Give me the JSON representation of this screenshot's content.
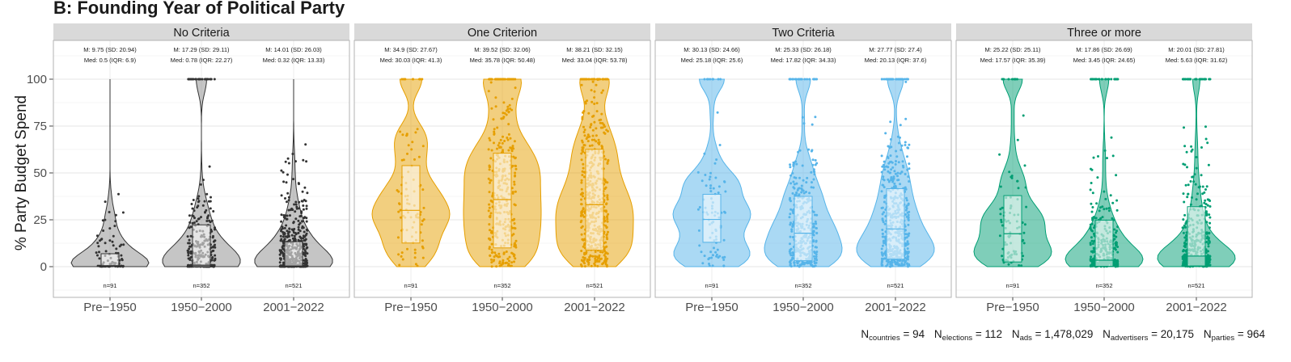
{
  "chart_data": {
    "type": "violin",
    "title": "B: Founding Year of Political Party",
    "ylabel": "% Party Budget Spend",
    "ylim": [
      -15,
      115
    ],
    "yticks": [
      0,
      25,
      50,
      75,
      100
    ],
    "grid": true,
    "legend": "none",
    "categories": [
      "Pre−1950",
      "1950−2000",
      "2001−2022"
    ],
    "panels": [
      {
        "name": "No Criteria",
        "color": "#333333",
        "fill": "#8c8c8c",
        "groups": [
          {
            "stats_line1": "M: 9.75 (SD: 20.94)",
            "stats_line2": "Med: 0.5 (IQR: 6.9)",
            "n_label": "n=91",
            "n": 91,
            "mean": 9.75,
            "sd": 20.94,
            "median": 0.5,
            "q1": 0,
            "q3": 6.9
          },
          {
            "stats_line1": "M: 17.29 (SD: 29.11)",
            "stats_line2": "Med: 0.78 (IQR: 22.27)",
            "n_label": "n=352",
            "n": 352,
            "mean": 17.29,
            "sd": 29.11,
            "median": 0.78,
            "q1": 0,
            "q3": 22.3
          },
          {
            "stats_line1": "M: 14.01 (SD: 26.03)",
            "stats_line2": "Med: 0.32 (IQR: 13.33)",
            "n_label": "n=521",
            "n": 521,
            "mean": 14.01,
            "sd": 26.03,
            "median": 0.32,
            "q1": 0,
            "q3": 13.3
          }
        ]
      },
      {
        "name": "One Criterion",
        "color": "#e69f00",
        "fill": "#e69f00",
        "groups": [
          {
            "stats_line1": "M: 34.9 (SD: 27.67)",
            "stats_line2": "Med: 30.03 (IQR: 41.3)",
            "n_label": "n=91",
            "n": 91,
            "mean": 34.9,
            "sd": 27.67,
            "median": 30.03,
            "q1": 12.6,
            "q3": 53.9
          },
          {
            "stats_line1": "M: 39.52 (SD: 32.06)",
            "stats_line2": "Med: 35.78 (IQR: 50.48)",
            "n_label": "n=352",
            "n": 352,
            "mean": 39.52,
            "sd": 32.06,
            "median": 35.78,
            "q1": 10,
            "q3": 60.5
          },
          {
            "stats_line1": "M: 38.21 (SD: 32.15)",
            "stats_line2": "Med: 33.04 (IQR: 53.78)",
            "n_label": "n=521",
            "n": 521,
            "mean": 38.21,
            "sd": 32.15,
            "median": 33.04,
            "q1": 8.8,
            "q3": 62.6
          }
        ]
      },
      {
        "name": "Two Criteria",
        "color": "#56b4e9",
        "fill": "#56b4e9",
        "groups": [
          {
            "stats_line1": "M: 30.13 (SD: 24.66)",
            "stats_line2": "Med: 25.18 (IQR: 25.6)",
            "n_label": "n=91",
            "n": 91,
            "mean": 30.13,
            "sd": 24.66,
            "median": 25.18,
            "q1": 13,
            "q3": 38.6
          },
          {
            "stats_line1": "M: 25.33 (SD: 26.18)",
            "stats_line2": "Med: 17.82 (IQR: 34.33)",
            "n_label": "n=352",
            "n": 352,
            "mean": 25.33,
            "sd": 26.18,
            "median": 17.82,
            "q1": 3.2,
            "q3": 37.5
          },
          {
            "stats_line1": "M: 27.77 (SD: 27.4)",
            "stats_line2": "Med: 20.13 (IQR: 37.6)",
            "n_label": "n=521",
            "n": 521,
            "mean": 27.77,
            "sd": 27.4,
            "median": 20.13,
            "q1": 4,
            "q3": 41.6
          }
        ]
      },
      {
        "name": "Three or more",
        "color": "#009e73",
        "fill": "#009e73",
        "groups": [
          {
            "stats_line1": "M: 25.22 (SD: 25.11)",
            "stats_line2": "Med: 17.57 (IQR: 35.39)",
            "n_label": "n=91",
            "n": 91,
            "mean": 25.22,
            "sd": 25.11,
            "median": 17.57,
            "q1": 2.5,
            "q3": 37.9
          },
          {
            "stats_line1": "M: 17.86 (SD: 26.69)",
            "stats_line2": "Med: 3.45 (IQR: 24.65)",
            "n_label": "n=352",
            "n": 352,
            "mean": 17.86,
            "sd": 26.69,
            "median": 3.45,
            "q1": 0.2,
            "q3": 24.8
          },
          {
            "stats_line1": "M: 20.01 (SD: 27.81)",
            "stats_line2": "Med: 5.63 (IQR: 31.62)",
            "n_label": "n=521",
            "n": 521,
            "mean": 20.01,
            "sd": 27.81,
            "median": 5.63,
            "q1": 0.4,
            "q3": 32
          }
        ]
      }
    ]
  },
  "footer": {
    "countries": {
      "base": "N",
      "sub": "countries",
      "value": " = 94"
    },
    "elections": {
      "base": "N",
      "sub": "elections",
      "value": " = 112"
    },
    "ads": {
      "base": "N",
      "sub": "ads",
      "value": " = 1,478,029"
    },
    "advertisers": {
      "base": "N",
      "sub": "advertisers",
      "value": " = 20,175"
    },
    "parties": {
      "base": "N",
      "sub": "parties",
      "value": " = 964"
    }
  }
}
